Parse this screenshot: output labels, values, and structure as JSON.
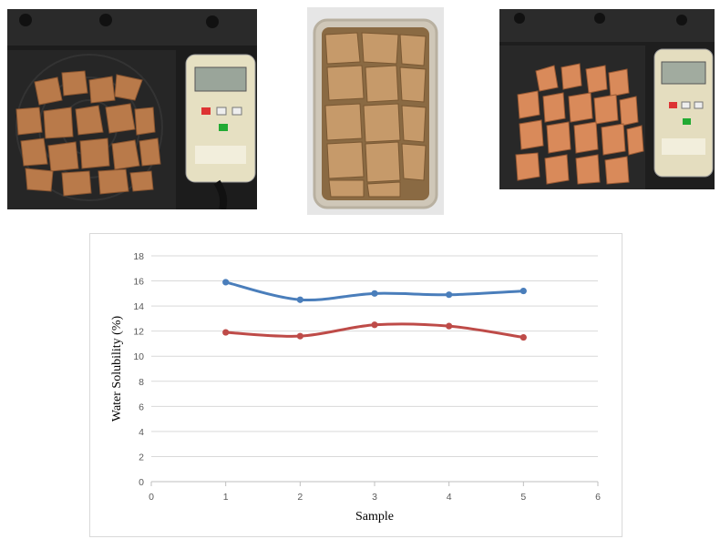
{
  "photos": [
    {
      "name": "photo-scale-pieces-left",
      "description_icon": "photo-scale-icon"
    },
    {
      "name": "photo-container-pieces",
      "description_icon": "photo-container-icon"
    },
    {
      "name": "photo-scale-pieces-right",
      "description_icon": "photo-scale-icon"
    }
  ],
  "chart_data": {
    "type": "line",
    "title": "",
    "xlabel": "Sample",
    "ylabel": "Water Solubility (%)",
    "x": [
      1,
      2,
      3,
      4,
      5
    ],
    "xlim": [
      0,
      6
    ],
    "ylim": [
      0,
      18
    ],
    "xticks": [
      0,
      1,
      2,
      3,
      4,
      5,
      6
    ],
    "yticks": [
      0,
      2,
      4,
      6,
      8,
      10,
      12,
      14,
      16,
      18
    ],
    "grid": "horizontal",
    "legend": "none",
    "series": [
      {
        "values": [
          15.9,
          14.5,
          15.0,
          14.9,
          15.2
        ],
        "color": "#4a7ebb"
      },
      {
        "values": [
          11.9,
          11.6,
          12.5,
          12.4,
          11.5
        ],
        "color": "#be4b48"
      }
    ]
  }
}
